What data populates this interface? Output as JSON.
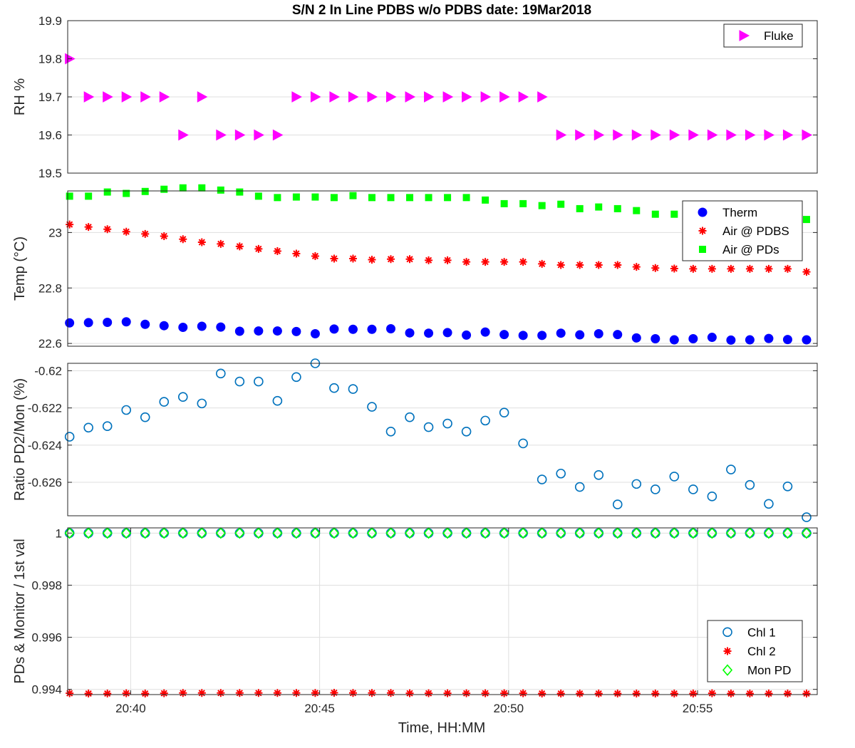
{
  "title": "S/N 2 In Line PDBS w/o PDBS date: 19Mar2018",
  "xlabel": "Time, HH:MM",
  "chart_data": [
    {
      "type": "scatter",
      "ylabel": "RH %",
      "xlim": [
        "20:38:20",
        "20:58:10"
      ],
      "ylim": [
        19.5,
        19.9
      ],
      "yticks": [
        19.5,
        19.6,
        19.7,
        19.8,
        19.9
      ],
      "grid": true,
      "legend": "top-right",
      "x": [
        "20:38:23",
        "20:38:53",
        "20:39:23",
        "20:39:53",
        "20:40:23",
        "20:40:53",
        "20:41:23",
        "20:41:53",
        "20:42:23",
        "20:42:53",
        "20:43:23",
        "20:43:53",
        "20:44:23",
        "20:44:53",
        "20:45:23",
        "20:45:53",
        "20:46:23",
        "20:46:53",
        "20:47:23",
        "20:47:53",
        "20:48:23",
        "20:48:53",
        "20:49:23",
        "20:49:53",
        "20:50:23",
        "20:50:53",
        "20:51:23",
        "20:51:53",
        "20:52:23",
        "20:52:53",
        "20:53:23",
        "20:53:53",
        "20:54:23",
        "20:54:53",
        "20:55:23",
        "20:55:53",
        "20:56:23",
        "20:56:53",
        "20:57:23",
        "20:57:53"
      ],
      "series": [
        {
          "name": "Fluke",
          "marker": "triangle-right",
          "color": "#ff00ff",
          "values": [
            19.8,
            19.7,
            19.7,
            19.7,
            19.7,
            19.7,
            19.6,
            19.7,
            19.6,
            19.6,
            19.6,
            19.6,
            19.7,
            19.7,
            19.7,
            19.7,
            19.7,
            19.7,
            19.7,
            19.7,
            19.7,
            19.7,
            19.7,
            19.7,
            19.7,
            19.7,
            19.6,
            19.6,
            19.6,
            19.6,
            19.6,
            19.6,
            19.6,
            19.6,
            19.6,
            19.6,
            19.6,
            19.6,
            19.6,
            19.6
          ]
        }
      ]
    },
    {
      "type": "scatter",
      "ylabel": "Temp (°C)",
      "xlim": [
        "20:38:20",
        "20:58:10"
      ],
      "ylim": [
        22.59,
        23.15
      ],
      "yticks": [
        22.6,
        22.8,
        23
      ],
      "ytick_labels": [
        "22.6",
        "22.8",
        "23"
      ],
      "grid": true,
      "legend": "top-right",
      "x": [
        "20:38:23",
        "20:38:53",
        "20:39:23",
        "20:39:53",
        "20:40:23",
        "20:40:53",
        "20:41:23",
        "20:41:53",
        "20:42:23",
        "20:42:53",
        "20:43:23",
        "20:43:53",
        "20:44:23",
        "20:44:53",
        "20:45:23",
        "20:45:53",
        "20:46:23",
        "20:46:53",
        "20:47:23",
        "20:47:53",
        "20:48:23",
        "20:48:53",
        "20:49:23",
        "20:49:53",
        "20:50:23",
        "20:50:53",
        "20:51:23",
        "20:51:53",
        "20:52:23",
        "20:52:53",
        "20:53:23",
        "20:53:53",
        "20:54:23",
        "20:54:53",
        "20:55:23",
        "20:55:53",
        "20:56:23",
        "20:56:53",
        "20:57:23",
        "20:57:53"
      ],
      "series": [
        {
          "name": "Therm",
          "marker": "filled-circle",
          "color": "#0000ff",
          "values": [
            22.674,
            22.675,
            22.676,
            22.678,
            22.669,
            22.664,
            22.658,
            22.662,
            22.659,
            22.644,
            22.645,
            22.645,
            22.643,
            22.635,
            22.652,
            22.651,
            22.651,
            22.653,
            22.638,
            22.637,
            22.639,
            22.63,
            22.641,
            22.632,
            22.629,
            22.629,
            22.637,
            22.631,
            22.635,
            22.632,
            22.62,
            22.617,
            22.613,
            22.617,
            22.622,
            22.612,
            22.613,
            22.618,
            22.614,
            22.613
          ]
        },
        {
          "name": "Air @ PDBS",
          "marker": "asterisk",
          "color": "#ff0000",
          "values": [
            23.029,
            23.02,
            23.012,
            23.003,
            22.995,
            22.987,
            22.976,
            22.965,
            22.959,
            22.95,
            22.941,
            22.933,
            22.924,
            22.915,
            22.906,
            22.906,
            22.902,
            22.904,
            22.904,
            22.9,
            22.9,
            22.894,
            22.894,
            22.894,
            22.894,
            22.887,
            22.883,
            22.883,
            22.883,
            22.883,
            22.876,
            22.872,
            22.87,
            22.869,
            22.869,
            22.869,
            22.869,
            22.869,
            22.869,
            22.858
          ]
        },
        {
          "name": "Air @ PDs",
          "marker": "filled-square",
          "color": "#00ff00",
          "values": [
            23.131,
            23.131,
            23.146,
            23.141,
            23.148,
            23.156,
            23.161,
            23.161,
            23.153,
            23.146,
            23.131,
            23.126,
            23.128,
            23.128,
            23.126,
            23.133,
            23.126,
            23.126,
            23.126,
            23.126,
            23.126,
            23.126,
            23.117,
            23.104,
            23.104,
            23.097,
            23.102,
            23.086,
            23.092,
            23.086,
            23.079,
            23.066,
            23.066,
            23.066,
            23.066,
            23.066,
            23.066,
            23.066,
            23.066,
            23.047
          ]
        }
      ]
    },
    {
      "type": "scatter",
      "ylabel": "Ratio PD2/Mon (%)",
      "xlim": [
        "20:38:20",
        "20:58:10"
      ],
      "ylim": [
        -0.6278,
        -0.6196
      ],
      "yticks": [
        -0.626,
        -0.624,
        -0.622,
        -0.62
      ],
      "ytick_labels": [
        "-0.626",
        "-0.624",
        "-0.622",
        "-0.62"
      ],
      "grid": true,
      "x": [
        "20:38:23",
        "20:38:53",
        "20:39:23",
        "20:39:53",
        "20:40:23",
        "20:40:53",
        "20:41:23",
        "20:41:53",
        "20:42:23",
        "20:42:53",
        "20:43:23",
        "20:43:53",
        "20:44:23",
        "20:44:53",
        "20:45:23",
        "20:45:53",
        "20:46:23",
        "20:46:53",
        "20:47:23",
        "20:47:53",
        "20:48:23",
        "20:48:53",
        "20:49:23",
        "20:49:53",
        "20:50:23",
        "20:50:53",
        "20:51:23",
        "20:51:53",
        "20:52:23",
        "20:52:53",
        "20:53:23",
        "20:53:53",
        "20:54:23",
        "20:54:53",
        "20:55:23",
        "20:55:53",
        "20:56:23",
        "20:56:53",
        "20:57:23",
        "20:57:53"
      ],
      "series": [
        {
          "name": "",
          "marker": "open-circle",
          "color": "#0072bd",
          "values": [
            -0.62355,
            -0.62306,
            -0.62298,
            -0.62211,
            -0.6225,
            -0.62167,
            -0.62141,
            -0.62176,
            -0.62015,
            -0.62058,
            -0.62058,
            -0.62162,
            -0.62034,
            -0.6196,
            -0.62093,
            -0.62098,
            -0.62194,
            -0.62327,
            -0.6225,
            -0.62303,
            -0.62284,
            -0.62327,
            -0.62268,
            -0.62225,
            -0.62391,
            -0.62585,
            -0.62553,
            -0.62625,
            -0.62561,
            -0.62719,
            -0.62609,
            -0.62638,
            -0.62569,
            -0.62638,
            -0.62676,
            -0.62531,
            -0.62614,
            -0.62716,
            -0.62622,
            -0.62788
          ]
        }
      ]
    },
    {
      "type": "scatter",
      "ylabel": "PDs & Monitor / 1st val",
      "xlim": [
        "20:38:20",
        "20:58:10"
      ],
      "ylim": [
        0.9938,
        1.0002
      ],
      "yticks": [
        0.994,
        0.996,
        0.998,
        1
      ],
      "ytick_labels": [
        "0.994",
        "0.996",
        "0.998",
        "1"
      ],
      "xticks": [
        "20:40",
        "20:45",
        "20:50",
        "20:55"
      ],
      "grid": true,
      "legend": "bottom-right",
      "x": [
        "20:38:23",
        "20:38:53",
        "20:39:23",
        "20:39:53",
        "20:40:23",
        "20:40:53",
        "20:41:23",
        "20:41:53",
        "20:42:23",
        "20:42:53",
        "20:43:23",
        "20:43:53",
        "20:44:23",
        "20:44:53",
        "20:45:23",
        "20:45:53",
        "20:46:23",
        "20:46:53",
        "20:47:23",
        "20:47:53",
        "20:48:23",
        "20:48:53",
        "20:49:23",
        "20:49:53",
        "20:50:23",
        "20:50:53",
        "20:51:23",
        "20:51:53",
        "20:52:23",
        "20:52:53",
        "20:53:23",
        "20:53:53",
        "20:54:23",
        "20:54:53",
        "20:55:23",
        "20:55:53",
        "20:56:23",
        "20:56:53",
        "20:57:23",
        "20:57:53"
      ],
      "series": [
        {
          "name": "Chl 1",
          "marker": "open-circle",
          "color": "#0072bd",
          "values": [
            1.0,
            1.0,
            1.0,
            1.0,
            1.0,
            1.0,
            1.0,
            1.0,
            1.0,
            1.0,
            1.0,
            1.0,
            1.0,
            1.0,
            1.0,
            1.0,
            1.0,
            1.0,
            1.0,
            1.0,
            1.0,
            1.0,
            1.0,
            1.0,
            1.0,
            1.0,
            1.0,
            1.0,
            1.0,
            1.0,
            1.0,
            1.0,
            1.0,
            1.0,
            1.0,
            1.0,
            1.0,
            1.0,
            1.0,
            1.0
          ]
        },
        {
          "name": "Chl 2",
          "marker": "asterisk",
          "color": "#ff0000",
          "values": [
            0.99385,
            0.99384,
            0.99384,
            0.99385,
            0.99384,
            0.99385,
            0.99386,
            0.99386,
            0.99386,
            0.99386,
            0.99386,
            0.99386,
            0.99386,
            0.99386,
            0.99387,
            0.99386,
            0.99386,
            0.99386,
            0.99385,
            0.99385,
            0.99385,
            0.99385,
            0.99385,
            0.99385,
            0.99385,
            0.99384,
            0.99384,
            0.99384,
            0.99384,
            0.99384,
            0.99384,
            0.99384,
            0.99384,
            0.99384,
            0.99385,
            0.99384,
            0.99384,
            0.99384,
            0.99384,
            0.99384
          ]
        },
        {
          "name": "Mon PD",
          "marker": "open-diamond",
          "color": "#00ff00",
          "values": [
            1.0,
            1.0,
            1.0,
            1.0,
            1.0,
            1.0,
            1.0,
            1.0,
            1.0,
            1.0,
            1.0,
            1.0,
            1.0,
            1.0,
            1.0,
            1.0,
            1.0,
            1.0,
            1.0,
            1.0,
            1.0,
            1.0,
            1.0,
            1.0,
            1.0,
            1.0,
            1.0,
            1.0,
            1.0,
            1.0,
            1.0,
            1.0,
            1.0,
            1.0,
            1.0,
            1.0,
            1.0,
            1.0,
            1.0,
            1.0
          ]
        }
      ]
    }
  ]
}
